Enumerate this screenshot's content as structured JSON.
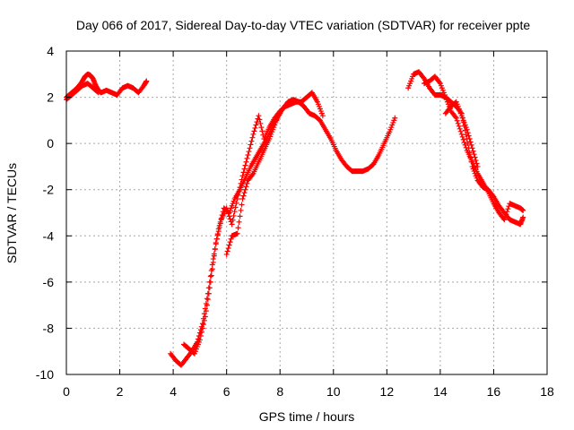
{
  "chart_data": {
    "type": "scatter",
    "title": "Day 066 of 2017, Sidereal Day-to-day VTEC variation (SDTVAR) for receiver ppte",
    "xlabel": "GPS time / hours",
    "ylabel": "SDTVAR / TECUs",
    "xlim": [
      0,
      18
    ],
    "ylim": [
      -10,
      4
    ],
    "xticks": [
      "0",
      "2",
      "4",
      "6",
      "8",
      "10",
      "12",
      "14",
      "16",
      "18"
    ],
    "yticks": [
      "4",
      "2",
      "0",
      "-2",
      "-4",
      "-6",
      "-8",
      "-10"
    ],
    "grid": true,
    "marker": "+",
    "series": [
      {
        "name": "SDTVAR",
        "color": "#ff0000",
        "tracks": [
          {
            "x": [
              0.0,
              0.2,
              0.4,
              0.6,
              0.7,
              0.8,
              0.9,
              1.0,
              1.1,
              1.2,
              1.3,
              1.5,
              1.7,
              1.9,
              2.1,
              2.3,
              2.5,
              2.7,
              2.9,
              3.0
            ],
            "y": [
              2.0,
              2.2,
              2.4,
              2.7,
              2.9,
              3.0,
              2.95,
              2.8,
              2.5,
              2.3,
              2.2,
              2.3,
              2.2,
              2.1,
              2.4,
              2.5,
              2.4,
              2.2,
              2.5,
              2.7
            ]
          },
          {
            "x": [
              0.0,
              0.2,
              0.4,
              0.6,
              0.8,
              1.0,
              1.2
            ],
            "y": [
              1.9,
              2.1,
              2.3,
              2.5,
              2.6,
              2.4,
              2.2
            ]
          },
          {
            "x": [
              3.9,
              4.1,
              4.3,
              4.5,
              4.7,
              4.9,
              5.1,
              5.3,
              5.5,
              5.7,
              5.9,
              6.1,
              6.3,
              6.5,
              6.7,
              6.9,
              7.1,
              7.3,
              7.5,
              7.7,
              7.9,
              8.1,
              8.3,
              8.5,
              8.7,
              8.9,
              9.1,
              9.3,
              9.5,
              9.7,
              9.9,
              10.1,
              10.3,
              10.5,
              10.7,
              10.9,
              11.1,
              11.3,
              11.5,
              11.7,
              11.9,
              12.1,
              12.3
            ],
            "y": [
              -9.1,
              -9.4,
              -9.6,
              -9.3,
              -9.0,
              -8.6,
              -7.8,
              -6.5,
              -5.0,
              -3.7,
              -2.8,
              -3.0,
              -2.4,
              -2.0,
              -1.5,
              -1.0,
              -0.6,
              -0.2,
              0.2,
              0.7,
              1.1,
              1.5,
              1.8,
              1.9,
              1.8,
              1.6,
              1.3,
              1.2,
              1.0,
              0.6,
              0.2,
              -0.3,
              -0.7,
              -1.0,
              -1.2,
              -1.2,
              -1.2,
              -1.1,
              -0.9,
              -0.5,
              0.0,
              0.5,
              1.1
            ]
          },
          {
            "x": [
              4.4,
              4.6,
              4.8,
              5.0,
              5.2,
              5.4,
              5.6,
              5.8,
              6.0,
              6.2,
              6.4,
              6.6,
              6.8,
              7.0,
              7.2,
              7.4,
              7.6,
              7.8,
              8.0,
              8.2,
              8.4,
              8.6,
              8.8,
              9.0,
              9.2,
              9.4,
              9.6
            ],
            "y": [
              -8.7,
              -8.9,
              -9.1,
              -8.5,
              -7.5,
              -6.0,
              -4.3,
              -3.3,
              -2.8,
              -3.5,
              -2.4,
              -1.4,
              -0.5,
              0.4,
              1.2,
              0.2,
              0.7,
              1.1,
              1.4,
              1.6,
              1.7,
              1.8,
              1.8,
              2.0,
              2.2,
              1.8,
              1.2
            ]
          },
          {
            "x": [
              6.0,
              6.2,
              6.4,
              6.6,
              6.8,
              7.0,
              7.2,
              7.4,
              7.6,
              7.8,
              8.0
            ],
            "y": [
              -4.8,
              -4.0,
              -3.9,
              -2.4,
              -1.6,
              -1.3,
              -0.8,
              -0.3,
              0.2,
              0.8,
              1.4
            ]
          },
          {
            "x": [
              12.8,
              13.0,
              13.2,
              13.4,
              13.6,
              13.8,
              14.0,
              14.2,
              14.4,
              14.6,
              14.8,
              15.0,
              15.2,
              15.4,
              15.6,
              15.8,
              16.0,
              16.2,
              16.4,
              16.6,
              16.8,
              17.0,
              17.1
            ],
            "y": [
              2.4,
              3.0,
              3.1,
              2.8,
              2.4,
              2.1,
              2.1,
              2.0,
              1.8,
              1.6,
              1.3,
              0.2,
              -1.0,
              -1.6,
              -1.9,
              -2.0,
              -2.3,
              -2.7,
              -3.0,
              -3.3,
              -3.4,
              -3.5,
              -3.2
            ]
          },
          {
            "x": [
              13.4,
              13.6,
              13.8,
              14.0,
              14.2,
              14.4,
              14.6,
              14.8,
              15.0,
              15.2,
              15.4,
              15.6,
              15.8,
              16.0,
              16.2,
              16.4,
              16.6,
              16.8,
              17.0,
              17.1
            ],
            "y": [
              2.6,
              2.7,
              2.9,
              2.6,
              2.0,
              1.4,
              1.1,
              0.4,
              -0.3,
              -0.8,
              -1.3,
              -1.7,
              -2.1,
              -2.6,
              -3.0,
              -3.3,
              -2.6,
              -2.7,
              -2.8,
              -2.9
            ]
          },
          {
            "x": [
              14.2,
              14.4,
              14.6,
              14.8,
              15.0,
              15.2,
              15.4
            ],
            "y": [
              1.3,
              1.6,
              1.8,
              1.2,
              0.6,
              -0.2,
              -1.0
            ]
          }
        ]
      }
    ]
  }
}
